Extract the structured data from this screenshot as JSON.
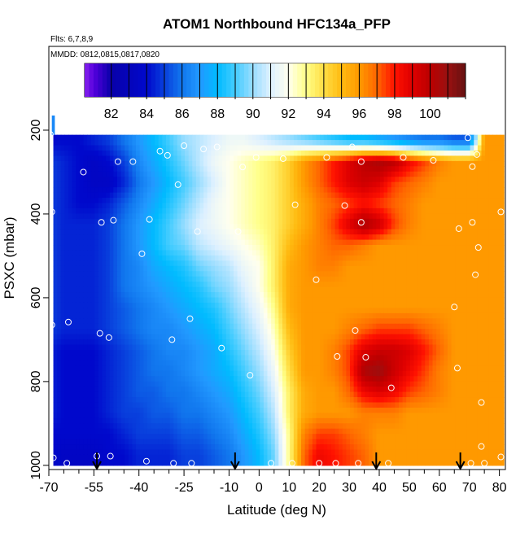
{
  "chart_data": {
    "type": "heatmap",
    "title": "ATOM1 Northbound HFC134a_PFP",
    "subtitle_flights": "Flts: 6,7,8,9",
    "subtitle_dates": "MMDD: 0812,0815,0817,0820",
    "xlabel": "Latitude (deg N)",
    "ylabel": "PSXC (mbar)",
    "xlim": [
      -70,
      82
    ],
    "ylim": [
      1010,
      0
    ],
    "x_ticks": [
      -70,
      -55,
      -40,
      -25,
      -10,
      0,
      10,
      20,
      30,
      40,
      50,
      60,
      70,
      80
    ],
    "x_tick_labels": [
      "-70",
      "-55",
      "-40",
      "-25",
      "-10",
      "0",
      "10",
      "20",
      "30",
      "40",
      "50",
      "60",
      "70",
      "80"
    ],
    "x_minor_ticks": [
      -65,
      -60,
      -50,
      -45,
      -35,
      -30,
      -20,
      -15,
      -5,
      5,
      15,
      25,
      35,
      45,
      55,
      65,
      75
    ],
    "y_ticks": [
      200,
      400,
      600,
      800,
      1000
    ],
    "y_tick_labels": [
      "200",
      "400",
      "600",
      "800",
      "1000"
    ],
    "colorbar": {
      "min": 80.5,
      "max": 102,
      "tick_values": [
        82,
        84,
        86,
        88,
        90,
        92,
        94,
        96,
        98,
        100
      ],
      "tick_labels": [
        "82",
        "84",
        "86",
        "88",
        "90",
        "92",
        "94",
        "96",
        "98",
        "100"
      ]
    },
    "grid_latitudes": [
      -70,
      -65,
      -60,
      -55,
      -50,
      -45,
      -40,
      -35,
      -30,
      -25,
      -20,
      -15,
      -10,
      -5,
      0,
      5,
      10,
      15,
      20,
      25,
      30,
      35,
      40,
      45,
      50,
      55,
      60,
      65,
      70,
      75,
      80
    ],
    "grid_pressure_levels": [
      225,
      275,
      325,
      375,
      425,
      475,
      525,
      575,
      625,
      675,
      725,
      775,
      825,
      875,
      925,
      975
    ],
    "grid_values": [
      [
        84,
        84,
        84,
        84.5,
        85,
        86,
        87,
        88,
        89,
        90,
        90.5,
        91,
        91.5,
        91.5,
        91,
        90.5,
        90,
        89.5,
        89,
        88.5,
        88,
        88,
        87.5,
        87,
        86.5,
        86,
        86,
        85.5,
        85.5,
        96,
        96
      ],
      [
        85,
        84.5,
        84,
        83.5,
        84,
        85,
        86.5,
        87.5,
        88.5,
        89.5,
        90.5,
        91.5,
        92,
        92.5,
        93,
        93.5,
        94.5,
        96,
        97,
        98,
        99,
        100,
        100.5,
        100,
        98.5,
        97.5,
        96.5,
        96,
        96,
        96,
        96
      ],
      [
        85,
        84.5,
        84,
        83.5,
        83.5,
        84.5,
        86,
        87,
        88,
        89,
        90,
        91,
        92,
        92.5,
        93,
        93.5,
        94.5,
        96,
        97,
        98,
        99,
        99.5,
        99,
        97.5,
        97,
        96.5,
        96,
        96,
        96,
        96,
        96
      ],
      [
        85,
        84.5,
        84,
        84,
        84.5,
        85.5,
        86.5,
        87.5,
        88.5,
        89.5,
        90.5,
        91.5,
        92,
        92.5,
        93,
        93.5,
        94.5,
        95.5,
        96.5,
        97,
        97.5,
        98,
        97.5,
        97,
        96.5,
        96,
        96,
        96,
        96,
        96,
        96
      ],
      [
        85,
        84.5,
        84.5,
        84.5,
        85,
        86,
        87,
        88,
        89,
        90,
        91,
        91.5,
        92,
        92.5,
        93,
        93.5,
        94.5,
        95.5,
        96.5,
        97.5,
        99,
        100.5,
        99.5,
        97.5,
        96.5,
        96,
        96,
        96,
        96,
        96,
        96
      ],
      [
        85,
        84.5,
        84.5,
        84.5,
        85,
        86,
        87,
        88,
        89,
        89.5,
        90.5,
        91,
        91.5,
        92,
        92.5,
        93.5,
        95,
        96,
        96.5,
        97,
        97,
        96.5,
        96,
        96,
        96,
        96,
        96,
        96,
        96,
        96,
        96
      ],
      [
        85,
        84.5,
        84.5,
        84.5,
        85,
        86,
        86.5,
        87.5,
        88,
        88.5,
        89.5,
        90,
        90.5,
        91.5,
        92,
        93.5,
        95.5,
        96,
        96.5,
        96.5,
        96,
        96,
        96,
        96,
        96,
        96,
        96,
        96,
        96,
        96,
        96
      ],
      [
        85,
        84.5,
        84.5,
        84.5,
        85,
        86,
        86.5,
        87,
        87.5,
        88,
        88.5,
        89.5,
        90,
        91,
        92,
        93.5,
        95.5,
        96,
        96,
        96,
        96,
        96,
        96,
        96,
        96,
        96,
        96,
        96,
        96,
        96,
        96
      ],
      [
        85,
        84.5,
        84.5,
        84.5,
        85,
        85.5,
        86,
        86.5,
        87,
        87.5,
        88,
        88.5,
        89.5,
        90.5,
        91.5,
        93,
        95.5,
        96,
        96,
        96,
        96,
        96,
        96,
        96,
        96,
        96,
        96,
        96,
        96,
        96,
        96
      ],
      [
        85,
        84.5,
        84.5,
        84.5,
        85,
        85.5,
        86,
        86.5,
        86.5,
        87,
        87.5,
        88,
        89,
        90,
        91,
        92.5,
        95,
        96,
        96,
        96,
        96.5,
        97,
        97.5,
        97.5,
        97.5,
        97,
        96.5,
        96,
        96,
        96,
        96
      ],
      [
        84.5,
        84,
        84,
        84,
        84.5,
        85,
        85.5,
        86,
        86.5,
        86.5,
        87,
        87.5,
        88.5,
        89.5,
        90.5,
        92,
        94.5,
        96,
        96,
        96.5,
        97.5,
        99,
        99.5,
        99.5,
        99,
        98,
        97,
        96,
        96,
        96,
        96
      ],
      [
        84.5,
        84,
        84,
        84,
        84.5,
        85,
        85.5,
        86,
        86,
        86.5,
        87,
        87.5,
        88,
        89,
        90,
        91.5,
        94,
        96,
        96,
        96.5,
        97.5,
        100.5,
        101,
        99.5,
        98.5,
        97.5,
        96.5,
        96,
        96,
        96,
        96
      ],
      [
        84.5,
        84,
        84,
        84,
        84.5,
        85,
        85.5,
        85.5,
        86,
        86,
        86.5,
        87,
        87.5,
        88.5,
        89.5,
        91,
        93.5,
        95.5,
        96,
        96,
        97,
        98.5,
        99,
        98.5,
        97.5,
        97,
        96.5,
        96,
        96,
        96,
        96
      ],
      [
        84.5,
        84,
        84,
        84,
        84.5,
        85,
        85,
        85.5,
        85.5,
        86,
        86,
        86.5,
        87,
        88,
        89,
        90.5,
        93.5,
        95.5,
        96,
        96,
        96,
        96.5,
        96.5,
        96.5,
        96,
        96,
        96,
        96,
        96,
        96,
        96
      ],
      [
        84,
        84,
        84,
        84,
        84,
        84.5,
        85,
        85,
        85,
        85.5,
        85.5,
        86,
        86.5,
        87.5,
        88.5,
        90,
        93,
        96.5,
        97.5,
        97.5,
        97,
        96.5,
        96,
        96,
        96,
        96,
        96,
        96,
        96,
        96,
        96
      ],
      [
        84,
        83.5,
        83.5,
        83.5,
        84,
        84,
        84.5,
        84.5,
        84.5,
        85,
        85,
        85.5,
        86,
        87,
        88,
        89.5,
        93,
        97,
        98.5,
        98,
        97.5,
        97,
        96,
        96,
        96,
        96,
        96,
        96,
        96,
        96,
        96
      ]
    ],
    "sample_points": [
      {
        "lat": -69.5,
        "p": 210
      },
      {
        "lat": -69,
        "p": 395
      },
      {
        "lat": -69,
        "p": 665
      },
      {
        "lat": -68.5,
        "p": 982
      },
      {
        "lat": -63.5,
        "p": 658
      },
      {
        "lat": -64,
        "p": 995
      },
      {
        "lat": -58.5,
        "p": 300
      },
      {
        "lat": -54,
        "p": 978
      },
      {
        "lat": -53,
        "p": 685
      },
      {
        "lat": -52.5,
        "p": 420
      },
      {
        "lat": -50,
        "p": 695
      },
      {
        "lat": -49.5,
        "p": 978
      },
      {
        "lat": -48.5,
        "p": 415
      },
      {
        "lat": -47,
        "p": 275
      },
      {
        "lat": -42,
        "p": 275
      },
      {
        "lat": -39,
        "p": 495
      },
      {
        "lat": -37.5,
        "p": 990
      },
      {
        "lat": -36.5,
        "p": 413
      },
      {
        "lat": -33,
        "p": 250
      },
      {
        "lat": -30.5,
        "p": 260
      },
      {
        "lat": -29,
        "p": 700
      },
      {
        "lat": -28.5,
        "p": 995
      },
      {
        "lat": -27,
        "p": 330
      },
      {
        "lat": -25,
        "p": 237
      },
      {
        "lat": -23,
        "p": 650
      },
      {
        "lat": -22.5,
        "p": 995
      },
      {
        "lat": -20.5,
        "p": 442
      },
      {
        "lat": -18.5,
        "p": 245
      },
      {
        "lat": -14,
        "p": 240
      },
      {
        "lat": -12.5,
        "p": 720
      },
      {
        "lat": -7,
        "p": 442
      },
      {
        "lat": -5.5,
        "p": 288
      },
      {
        "lat": -3,
        "p": 785
      },
      {
        "lat": -1,
        "p": 265
      },
      {
        "lat": 4,
        "p": 995
      },
      {
        "lat": 8,
        "p": 268
      },
      {
        "lat": 11,
        "p": 995
      },
      {
        "lat": 12,
        "p": 378
      },
      {
        "lat": 19,
        "p": 557
      },
      {
        "lat": 20,
        "p": 995
      },
      {
        "lat": 22.5,
        "p": 265
      },
      {
        "lat": 25.5,
        "p": 995
      },
      {
        "lat": 26,
        "p": 740
      },
      {
        "lat": 28.5,
        "p": 380
      },
      {
        "lat": 31,
        "p": 240
      },
      {
        "lat": 32,
        "p": 678
      },
      {
        "lat": 33,
        "p": 995
      },
      {
        "lat": 34,
        "p": 275
      },
      {
        "lat": 34,
        "p": 420
      },
      {
        "lat": 35.5,
        "p": 742
      },
      {
        "lat": 43,
        "p": 995
      },
      {
        "lat": 44,
        "p": 815
      },
      {
        "lat": 48,
        "p": 265
      },
      {
        "lat": 58,
        "p": 272
      },
      {
        "lat": 65,
        "p": 622
      },
      {
        "lat": 66,
        "p": 768
      },
      {
        "lat": 66.5,
        "p": 435
      },
      {
        "lat": 69.5,
        "p": 218
      },
      {
        "lat": 70.5,
        "p": 995
      },
      {
        "lat": 71,
        "p": 420
      },
      {
        "lat": 71,
        "p": 287
      },
      {
        "lat": 72,
        "p": 545
      },
      {
        "lat": 72.5,
        "p": 258
      },
      {
        "lat": 73,
        "p": 480
      },
      {
        "lat": 74,
        "p": 850
      },
      {
        "lat": 74,
        "p": 955
      },
      {
        "lat": 75,
        "p": 995
      },
      {
        "lat": 80.5,
        "p": 395
      },
      {
        "lat": 80.5,
        "p": 980
      }
    ],
    "arrow_latitudes": [
      -54,
      -8,
      39,
      67
    ]
  }
}
